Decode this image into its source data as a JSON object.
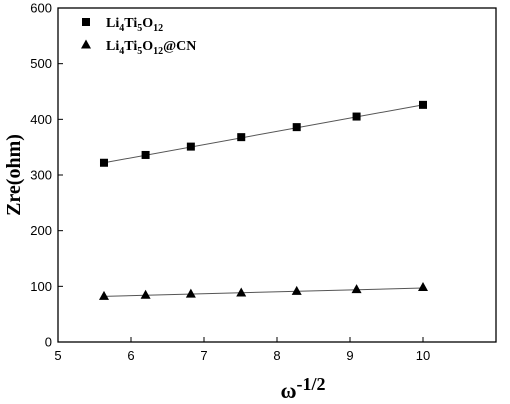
{
  "chart_data": {
    "type": "scatter",
    "title": "",
    "xlabel": "ω",
    "xlabel_exponent": "-1/2",
    "ylabel": "Zre(ohm)",
    "xlim": [
      5,
      11
    ],
    "ylim": [
      0,
      600
    ],
    "xticks": [
      5,
      6,
      7,
      8,
      9,
      10
    ],
    "yticks": [
      0,
      100,
      200,
      300,
      400,
      500,
      600
    ],
    "grid": false,
    "legend_position": "top-left",
    "series": [
      {
        "name_parts": [
          "Li",
          "4",
          "Ti",
          "5",
          "O",
          "12",
          ""
        ],
        "marker": "square",
        "color": "#000000",
        "x": [
          5.63,
          6.2,
          6.82,
          7.51,
          8.27,
          9.09,
          10.0
        ],
        "y": [
          322,
          336,
          351,
          368,
          386,
          405,
          426
        ],
        "fit_line": {
          "x": [
            5.63,
            10.0
          ],
          "y": [
            322,
            426
          ]
        }
      },
      {
        "name_parts": [
          "Li",
          "4",
          "Ti",
          "5",
          "O",
          "12",
          "@CN"
        ],
        "marker": "triangle",
        "color": "#000000",
        "x": [
          5.63,
          6.2,
          6.82,
          7.51,
          8.27,
          9.09,
          10.0
        ],
        "y": [
          82,
          84,
          86,
          88,
          91,
          94,
          98
        ],
        "fit_line": {
          "x": [
            5.63,
            10.0
          ],
          "y": [
            82,
            97
          ]
        }
      }
    ]
  }
}
